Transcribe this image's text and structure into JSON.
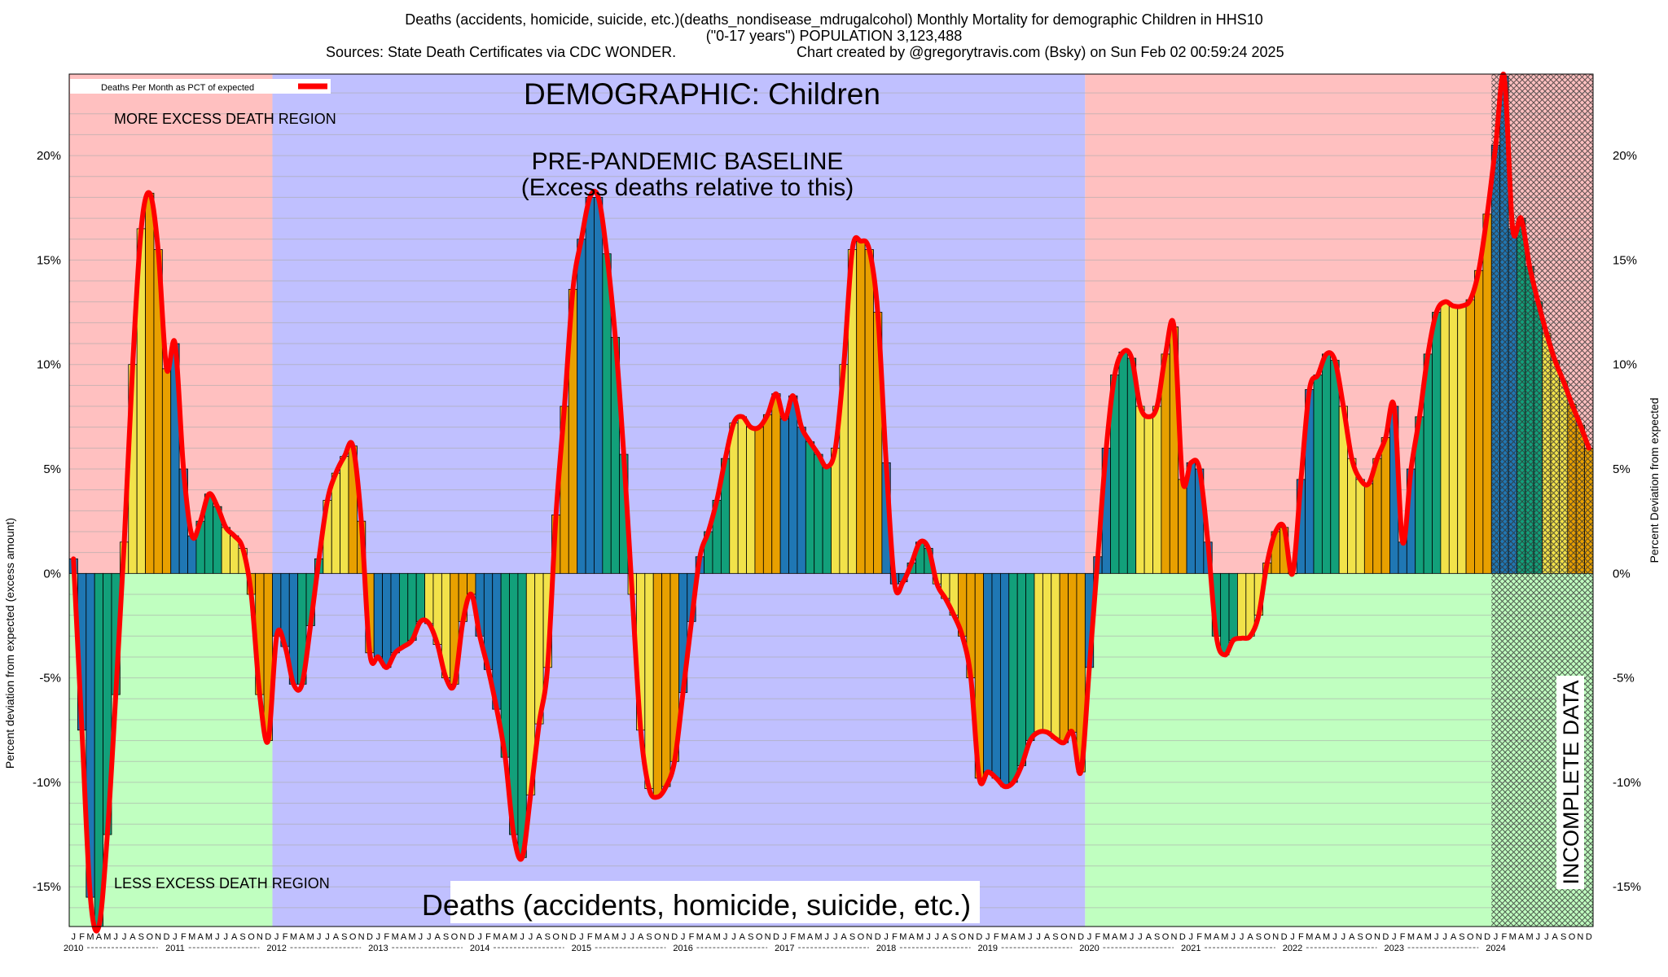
{
  "header": {
    "line1": "Deaths (accidents, homicide, suicide, etc.)(deaths_nondisease_mdrugalcohol) Monthly Mortality for demographic Children in HHS10",
    "line2": "(\"0-17 years\") POPULATION 3,123,488",
    "line3_left": "Sources: State Death Certificates via CDC WONDER.",
    "line3_right": "Chart created by @gregorytravis.com (Bsky) on Sun Feb 02 00:59:24 2025"
  },
  "annotations": {
    "demographic": "DEMOGRAPHIC: Children",
    "baseline_line1": "PRE-PANDEMIC BASELINE",
    "baseline_line2": "(Excess deaths relative to this)",
    "more_region": "MORE EXCESS DEATH REGION",
    "less_region": "LESS EXCESS DEATH REGION",
    "bottom_title": "Deaths (accidents, homicide, suicide, etc.)",
    "incomplete": "INCOMPLETE DATA"
  },
  "colors": {
    "more_region": "#ffc0c0",
    "less_region": "#c0ffc0",
    "baseline_region": "#c0c0ff",
    "line": "#ff0000",
    "bar_palette": [
      "#1f77b4",
      "#12a07a",
      "#f2e24a",
      "#e8a000"
    ]
  },
  "chart_data": {
    "type": "bar",
    "title": "Deaths (accidents, homicide, suicide, etc.)",
    "ylabel": "Percent deviation from expected (excess amount)",
    "ylabel_right": "Percent Deviation from expected",
    "legend": {
      "label": "Deaths Per Month as PCT of expected",
      "position": "top-left"
    },
    "ylim": [
      -16.9,
      23.9
    ],
    "yticks": [
      -15,
      -10,
      -5,
      0,
      5,
      10,
      15,
      20
    ],
    "ytick_labels": [
      "-15%",
      "-10%",
      "-5%",
      "0%",
      "5%",
      "10%",
      "15%",
      "20%"
    ],
    "x_start": "2010-01",
    "baseline_period": [
      "2012-01",
      "2019-12"
    ],
    "incomplete_from": "2024-01",
    "month_letters": [
      "J",
      "F",
      "M",
      "A",
      "M",
      "J",
      "J",
      "A",
      "S",
      "O",
      "N",
      "D"
    ],
    "years": [
      "2010",
      "2011",
      "2012",
      "2013",
      "2014",
      "2015",
      "2016",
      "2017",
      "2018",
      "2019",
      "2020",
      "2021",
      "2022",
      "2023",
      "2024"
    ],
    "values": [
      0.7,
      -7.5,
      -15.5,
      -16.9,
      -12.5,
      -5.8,
      1.5,
      10.0,
      16.5,
      18.2,
      15.5,
      9.8,
      11.0,
      5.0,
      1.8,
      2.5,
      3.8,
      3.2,
      2.2,
      1.8,
      1.2,
      -1.0,
      -5.8,
      -8.0,
      -3.0,
      -3.5,
      -5.3,
      -5.3,
      -2.5,
      0.7,
      3.5,
      4.8,
      5.6,
      6.1,
      2.5,
      -3.8,
      -4.0,
      -4.5,
      -3.8,
      -3.5,
      -3.2,
      -2.3,
      -2.4,
      -3.4,
      -5.0,
      -5.3,
      -2.3,
      -1.0,
      -3.0,
      -4.6,
      -6.5,
      -8.8,
      -12.5,
      -13.6,
      -10.6,
      -7.2,
      -4.5,
      2.8,
      8.0,
      13.6,
      16.0,
      18.0,
      18.0,
      15.3,
      11.3,
      5.7,
      -1.0,
      -7.5,
      -10.3,
      -10.7,
      -10.2,
      -9.0,
      -5.7,
      -2.3,
      0.8,
      2.0,
      3.5,
      5.5,
      7.2,
      7.5,
      7.0,
      7.0,
      7.6,
      8.6,
      7.4,
      8.5,
      7.0,
      6.3,
      5.7,
      5.1,
      6.0,
      10.0,
      15.5,
      15.9,
      15.5,
      12.5,
      5.3,
      -0.5,
      -0.4,
      0.5,
      1.5,
      1.2,
      -0.5,
      -1.2,
      -2.0,
      -3.0,
      -5.0,
      -9.8,
      -9.5,
      -9.8,
      -10.2,
      -10.0,
      -9.2,
      -8.0,
      -7.6,
      -7.6,
      -7.9,
      -8.1,
      -7.6,
      -9.5,
      -4.5,
      0.8,
      6.0,
      9.5,
      10.6,
      10.3,
      8.0,
      7.5,
      8.0,
      10.5,
      11.8,
      4.5,
      5.3,
      5.0,
      1.5,
      -3.0,
      -3.9,
      -3.2,
      -3.1,
      -3.0,
      -2.0,
      0.5,
      2.0,
      2.2,
      0.0,
      4.5,
      8.8,
      9.5,
      10.5,
      10.2,
      8.0,
      5.5,
      4.5,
      4.3,
      5.5,
      6.5,
      8.0,
      1.5,
      5.0,
      7.5,
      10.5,
      12.5,
      13.0,
      12.8,
      12.8,
      13.1,
      14.5,
      17.2,
      20.5,
      23.8,
      16.5,
      17.0,
      14.7,
      13.0,
      11.5,
      10.2,
      9.2,
      8.1,
      7.1,
      6.0
    ]
  }
}
